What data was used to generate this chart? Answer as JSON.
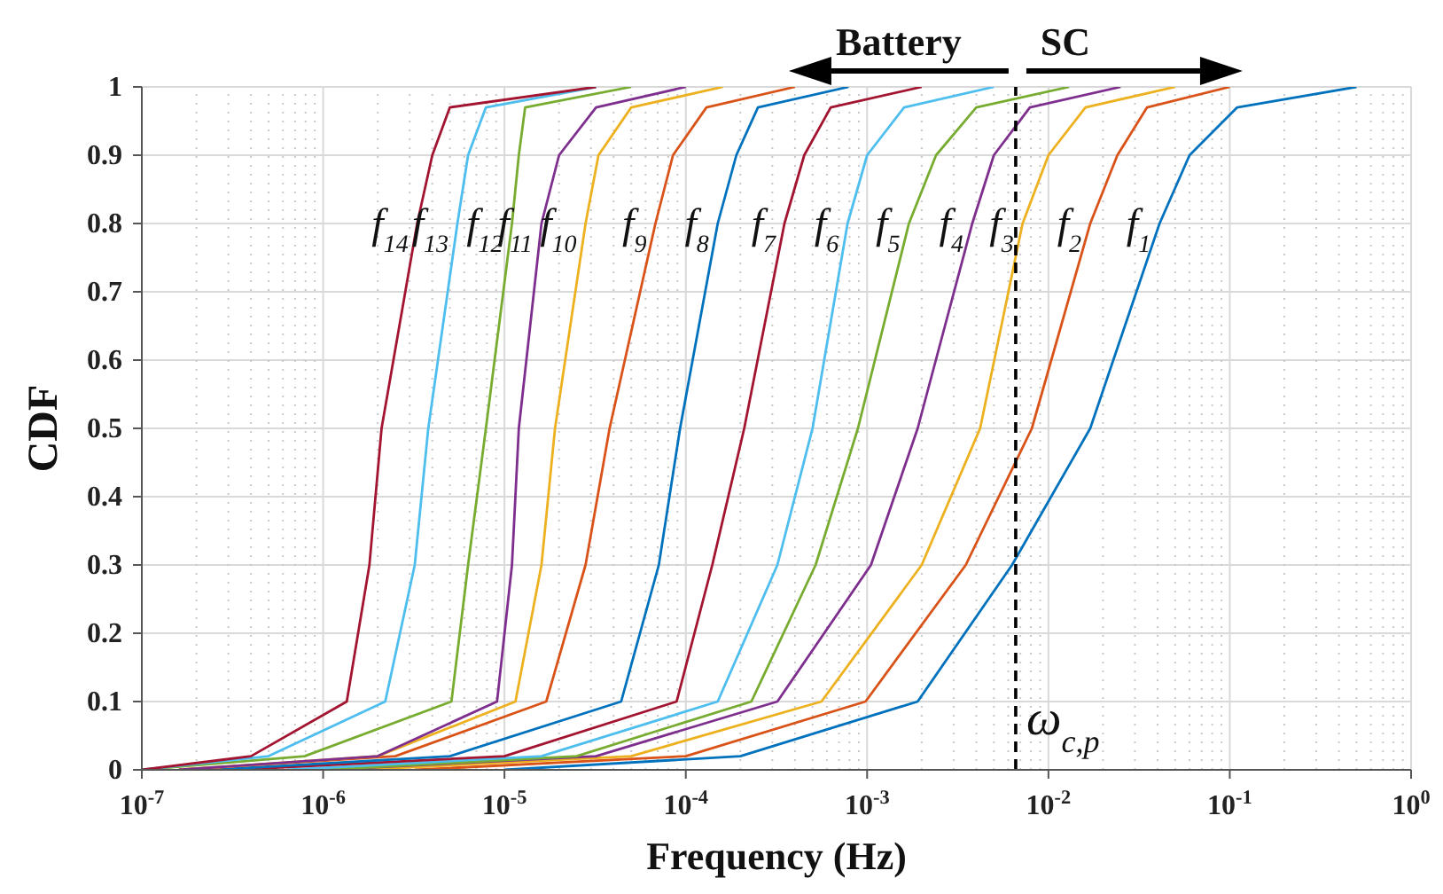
{
  "chart_data": {
    "type": "line",
    "xlabel": "Frequency (Hz)",
    "ylabel": "CDF",
    "log": "x",
    "grid": true,
    "xlim": [
      1e-07,
      1
    ],
    "ylim": [
      0,
      1
    ],
    "xticks": [
      {
        "value": 1e-07,
        "label": "10$^{-7}$"
      },
      {
        "value": 1e-06,
        "label": "10$^{-6}$"
      },
      {
        "value": 1e-05,
        "label": "10$^{-5}$"
      },
      {
        "value": 0.0001,
        "label": "10$^{-4}$"
      },
      {
        "value": 0.001,
        "label": "10$^{-3}$"
      },
      {
        "value": 0.01,
        "label": "10$^{-2}$"
      },
      {
        "value": 0.1,
        "label": "10$^{-1}$"
      },
      {
        "value": 1,
        "label": "10$^{0}$"
      }
    ],
    "yticks": [
      0,
      0.1,
      0.2,
      0.3,
      0.4,
      0.5,
      0.6,
      0.7,
      0.8,
      0.9,
      1
    ],
    "series": [
      {
        "name": "f$_{1}$",
        "color": "#0072bd",
        "x": [
          1e-05,
          0.0002,
          0.0019,
          0.0063,
          0.017,
          0.041,
          0.06,
          0.11,
          0.5
        ],
        "values": [
          0,
          0.02,
          0.1,
          0.3,
          0.5,
          0.8,
          0.9,
          0.97,
          1
        ]
      },
      {
        "name": "f$_{2}$",
        "color": "#d95319",
        "x": [
          3.2e-06,
          0.0001,
          0.00098,
          0.0035,
          0.0081,
          0.017,
          0.024,
          0.035,
          0.1
        ],
        "values": [
          0,
          0.02,
          0.1,
          0.3,
          0.5,
          0.8,
          0.9,
          0.97,
          1
        ]
      },
      {
        "name": "f$_{3}$",
        "color": "#edb120",
        "x": [
          1.6e-06,
          5e-05,
          0.00056,
          0.002,
          0.0042,
          0.0072,
          0.01,
          0.016,
          0.05
        ],
        "values": [
          0,
          0.02,
          0.1,
          0.3,
          0.5,
          0.8,
          0.9,
          0.97,
          1
        ]
      },
      {
        "name": "f$_{4}$",
        "color": "#7e2f8e",
        "x": [
          1e-06,
          3.2e-05,
          0.00032,
          0.00105,
          0.0019,
          0.0038,
          0.005,
          0.0079,
          0.025
        ],
        "values": [
          0,
          0.02,
          0.1,
          0.3,
          0.5,
          0.8,
          0.9,
          0.97,
          1
        ]
      },
      {
        "name": "f$_{5}$",
        "color": "#77ac30",
        "x": [
          1e-06,
          2.5e-05,
          0.00023,
          0.00052,
          0.00089,
          0.0017,
          0.0024,
          0.004,
          0.013
        ],
        "values": [
          0,
          0.02,
          0.1,
          0.3,
          0.5,
          0.8,
          0.9,
          0.97,
          1
        ]
      },
      {
        "name": "f$_{6}$",
        "color": "#4dbeee",
        "x": [
          6.3e-07,
          1.6e-05,
          0.00015,
          0.00032,
          0.0005,
          0.00078,
          0.001,
          0.0016,
          0.005
        ],
        "values": [
          0,
          0.02,
          0.1,
          0.3,
          0.5,
          0.8,
          0.9,
          0.97,
          1
        ]
      },
      {
        "name": "f$_{7}$",
        "color": "#a2142f",
        "x": [
          3.2e-07,
          1e-05,
          8.9e-05,
          0.00014,
          0.00021,
          0.00035,
          0.00045,
          0.00063,
          0.002
        ],
        "values": [
          0,
          0.02,
          0.1,
          0.3,
          0.5,
          0.8,
          0.9,
          0.97,
          1
        ]
      },
      {
        "name": "f$_{8}$",
        "color": "#0072bd",
        "x": [
          2.5e-07,
          5e-06,
          4.4e-05,
          7.1e-05,
          9.3e-05,
          0.00015,
          0.00019,
          0.00025,
          0.00079
        ],
        "values": [
          0,
          0.02,
          0.1,
          0.3,
          0.5,
          0.8,
          0.9,
          0.97,
          1
        ]
      },
      {
        "name": "f$_{9}$",
        "color": "#d95319",
        "x": [
          1.6e-07,
          2.5e-06,
          1.7e-05,
          2.8e-05,
          3.8e-05,
          6.8e-05,
          8.5e-05,
          0.00013,
          0.0004
        ],
        "values": [
          0,
          0.02,
          0.1,
          0.3,
          0.5,
          0.8,
          0.9,
          0.97,
          1
        ]
      },
      {
        "name": "f$_{10}$",
        "color": "#edb120",
        "x": [
          1.6e-07,
          2e-06,
          1.15e-05,
          1.6e-05,
          1.9e-05,
          2.8e-05,
          3.3e-05,
          5e-05,
          0.00016
        ],
        "values": [
          0,
          0.02,
          0.1,
          0.3,
          0.5,
          0.8,
          0.9,
          0.97,
          1
        ]
      },
      {
        "name": "f$_{11}$",
        "color": "#7e2f8e",
        "x": [
          1.6e-07,
          2e-06,
          9.1e-06,
          1.1e-05,
          1.2e-05,
          1.6e-05,
          2e-05,
          3.2e-05,
          0.0001
        ],
        "values": [
          0,
          0.02,
          0.1,
          0.3,
          0.5,
          0.8,
          0.9,
          0.97,
          1
        ]
      },
      {
        "name": "f$_{12}$",
        "color": "#77ac30",
        "x": [
          1e-07,
          7.9e-07,
          5.1e-06,
          6.3e-06,
          7.9e-06,
          1.1e-05,
          1.2e-05,
          1.3e-05,
          5e-05
        ],
        "values": [
          0,
          0.02,
          0.1,
          0.3,
          0.5,
          0.8,
          0.9,
          0.97,
          1
        ]
      },
      {
        "name": "f$_{13}$",
        "color": "#4dbeee",
        "x": [
          1e-07,
          5e-07,
          2.2e-06,
          3.2e-06,
          3.8e-06,
          5.5e-06,
          6.3e-06,
          7.9e-06,
          3.2e-05
        ],
        "values": [
          0,
          0.02,
          0.1,
          0.3,
          0.5,
          0.8,
          0.9,
          0.97,
          1
        ]
      },
      {
        "name": "f$_{14}$",
        "color": "#a2142f",
        "x": [
          1e-07,
          4e-07,
          1.35e-06,
          1.8e-06,
          2.1e-06,
          3.3e-06,
          4e-06,
          5e-06,
          3.2e-05
        ],
        "values": [
          0,
          0.02,
          0.1,
          0.3,
          0.5,
          0.8,
          0.9,
          0.97,
          1
        ]
      }
    ],
    "ref_lines": [
      {
        "axis": "x",
        "value": 0.0066,
        "label": "ω$_{c,p}$",
        "color": "#000000",
        "line_style": "dashed"
      }
    ],
    "annotations": [
      "Battery",
      "SC"
    ]
  }
}
